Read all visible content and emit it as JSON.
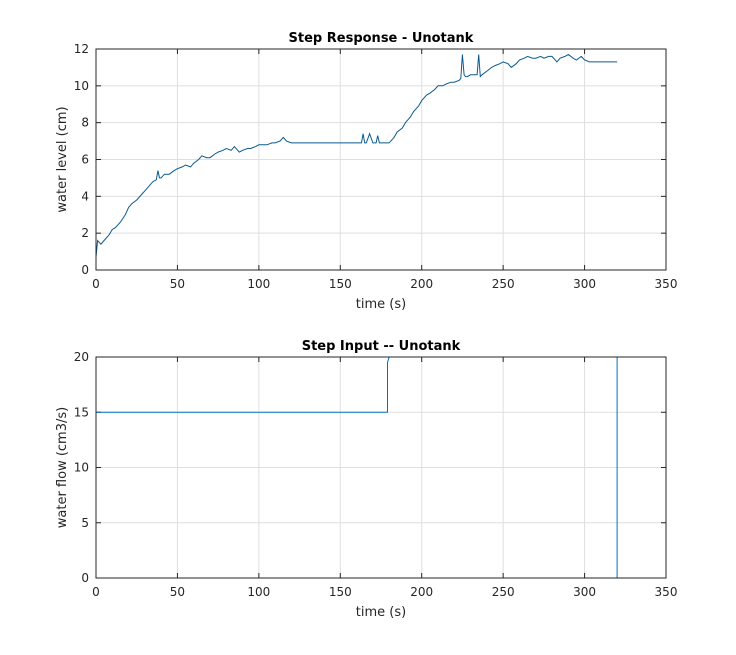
{
  "chart_data": [
    {
      "type": "line",
      "title": "Step Response - Unotank",
      "xlabel": "time (s)",
      "ylabel": "water level (cm)",
      "xlim": [
        0,
        350
      ],
      "ylim": [
        0,
        12
      ],
      "xticks": [
        "0",
        "50",
        "100",
        "150",
        "200",
        "250",
        "300",
        "350"
      ],
      "yticks": [
        "0",
        "2",
        "4",
        "6",
        "8",
        "10",
        "12"
      ],
      "grid": true,
      "color": "#0b5a8f",
      "series": [
        {
          "x": [
            0,
            1,
            2,
            3,
            5,
            8,
            10,
            12,
            15,
            18,
            20,
            22,
            25,
            28,
            30,
            33,
            35,
            37,
            38,
            39,
            40,
            42,
            45,
            48,
            50,
            53,
            55,
            58,
            60,
            63,
            65,
            68,
            70,
            73,
            75,
            78,
            80,
            83,
            85,
            88,
            90,
            93,
            95,
            98,
            100,
            103,
            105,
            108,
            110,
            113,
            115,
            117,
            120,
            125,
            130,
            135,
            140,
            145,
            150,
            155,
            160,
            163,
            164,
            165,
            166,
            168,
            170,
            172,
            173,
            174,
            175,
            178,
            180,
            183,
            185,
            188,
            190,
            193,
            195,
            198,
            200,
            203,
            205,
            208,
            210,
            213,
            215,
            218,
            220,
            223,
            224,
            225,
            226,
            227,
            228,
            230,
            232,
            234,
            235,
            236,
            237,
            240,
            243,
            245,
            248,
            250,
            253,
            255,
            258,
            260,
            263,
            265,
            268,
            270,
            273,
            275,
            278,
            280,
            283,
            285,
            288,
            290,
            293,
            295,
            298,
            300,
            303,
            305,
            310,
            315,
            320
          ],
          "y": [
            0.7,
            1.6,
            1.5,
            1.4,
            1.6,
            1.9,
            2.2,
            2.3,
            2.6,
            3.0,
            3.4,
            3.6,
            3.8,
            4.1,
            4.3,
            4.6,
            4.8,
            4.9,
            5.4,
            5.0,
            5.0,
            5.2,
            5.2,
            5.4,
            5.5,
            5.6,
            5.7,
            5.6,
            5.8,
            6.0,
            6.2,
            6.1,
            6.1,
            6.3,
            6.4,
            6.5,
            6.6,
            6.5,
            6.7,
            6.4,
            6.5,
            6.6,
            6.6,
            6.7,
            6.8,
            6.8,
            6.8,
            6.9,
            6.9,
            7.0,
            7.2,
            7.0,
            6.9,
            6.9,
            6.9,
            6.9,
            6.9,
            6.9,
            6.9,
            6.9,
            6.9,
            6.9,
            7.4,
            6.9,
            6.9,
            7.4,
            6.9,
            6.9,
            7.3,
            6.9,
            6.9,
            6.9,
            6.9,
            7.2,
            7.5,
            7.7,
            8.0,
            8.3,
            8.6,
            8.9,
            9.2,
            9.5,
            9.6,
            9.8,
            10.0,
            10.0,
            10.1,
            10.2,
            10.2,
            10.3,
            10.4,
            11.7,
            10.6,
            10.5,
            10.5,
            10.6,
            10.6,
            10.6,
            11.7,
            10.5,
            10.6,
            10.8,
            11.0,
            11.1,
            11.2,
            11.3,
            11.2,
            11.0,
            11.2,
            11.4,
            11.5,
            11.6,
            11.5,
            11.5,
            11.6,
            11.5,
            11.6,
            11.6,
            11.3,
            11.5,
            11.6,
            11.7,
            11.5,
            11.4,
            11.6,
            11.4,
            11.3,
            11.3,
            11.3,
            11.3,
            11.3
          ]
        }
      ]
    },
    {
      "type": "line",
      "title": "Step Input -- Unotank",
      "xlabel": "time (s)",
      "ylabel": "water flow (cm3/s)",
      "xlim": [
        0,
        350
      ],
      "ylim": [
        0,
        20
      ],
      "xticks": [
        "0",
        "50",
        "100",
        "150",
        "200",
        "250",
        "300",
        "350"
      ],
      "yticks": [
        "0",
        "5",
        "10",
        "15",
        "20"
      ],
      "grid": true,
      "color": "#0072bd",
      "series": [
        {
          "x": [
            0,
            179,
            179,
            180,
            320,
            320
          ],
          "y": [
            15,
            15,
            19.5,
            20,
            20,
            0
          ]
        }
      ]
    }
  ]
}
